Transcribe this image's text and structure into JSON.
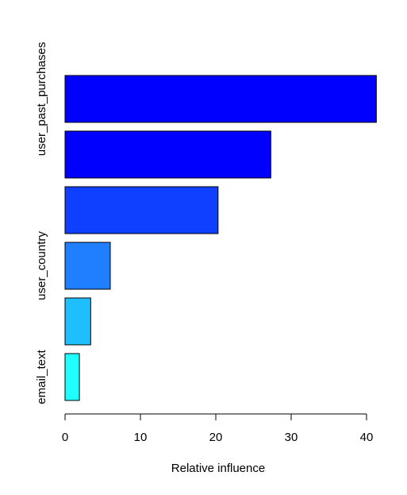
{
  "chart_data": {
    "type": "bar",
    "orientation": "horizontal",
    "title": "",
    "xlabel": "Relative influence",
    "ylabel": "",
    "xlim": [
      0,
      41.5
    ],
    "x_ticks": [
      0,
      10,
      20,
      30,
      40
    ],
    "grid": false,
    "legend": "none",
    "bars": [
      {
        "category": "email_text",
        "value": 1.9,
        "color": "#1fffff",
        "label_visible": true
      },
      {
        "category": "",
        "value": 3.4,
        "color": "#1fbfff",
        "label_visible": false
      },
      {
        "category": "user_country",
        "value": 6.0,
        "color": "#1f7fff",
        "label_visible": true
      },
      {
        "category": "",
        "value": 20.3,
        "color": "#0f3fff",
        "label_visible": false
      },
      {
        "category": "",
        "value": 27.3,
        "color": "#0000ff",
        "label_visible": false
      },
      {
        "category": "user_past_purchases",
        "value": 41.3,
        "color": "#0000ff",
        "label_visible": true
      }
    ]
  }
}
